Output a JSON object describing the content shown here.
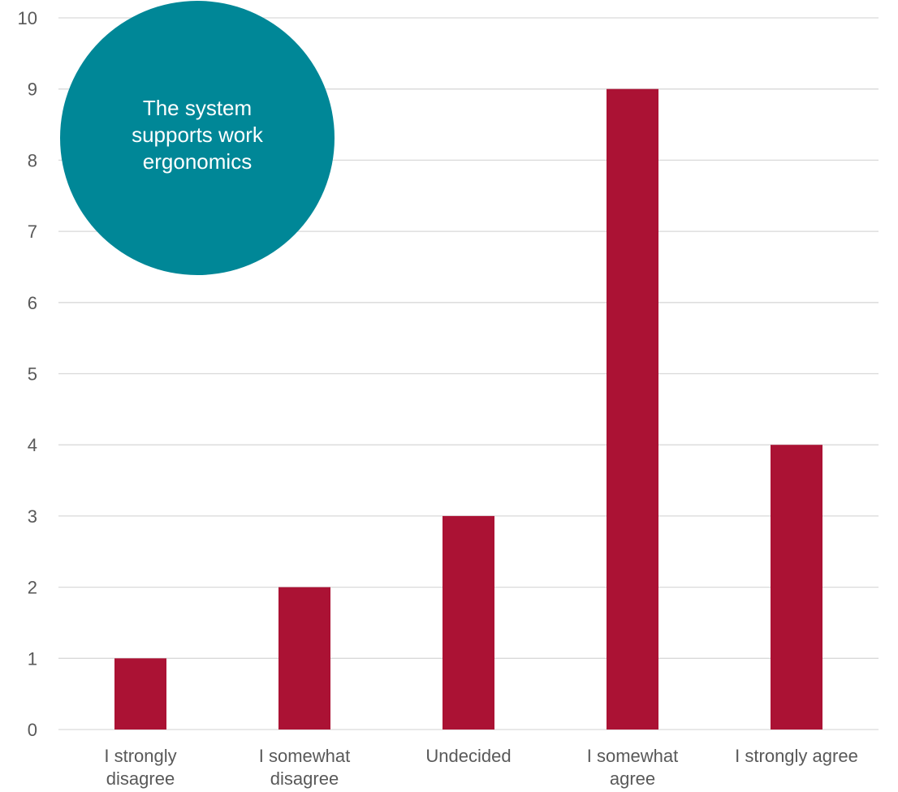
{
  "chart_data": {
    "type": "bar",
    "categories": [
      [
        "I strongly",
        "disagree"
      ],
      [
        "I somewhat",
        "disagree"
      ],
      [
        "Undecided"
      ],
      [
        "I somewhat",
        "agree"
      ],
      [
        "I strongly agree"
      ]
    ],
    "values": [
      1,
      2,
      3,
      9,
      4
    ],
    "ylim": [
      0,
      10
    ],
    "yticks": [
      0,
      1,
      2,
      3,
      4,
      5,
      6,
      7,
      8,
      9,
      10
    ],
    "grid": true,
    "legend": "none",
    "annotation": {
      "lines": [
        "The system",
        "supports work",
        "ergonomics"
      ],
      "placement": "top-left"
    },
    "colors": {
      "bar": "#ab1234",
      "annotation_fill": "#008797",
      "annotation_text": "#ffffff"
    }
  }
}
